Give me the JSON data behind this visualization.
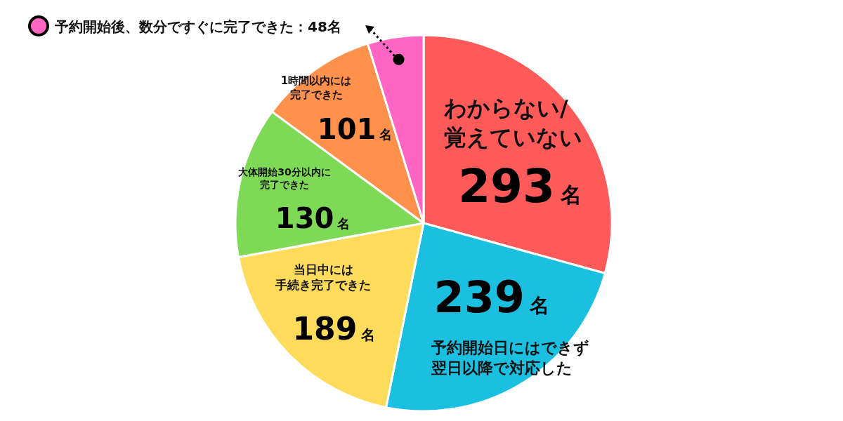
{
  "chart_data": {
    "type": "pie",
    "categories": [
      "わからない/覚えていない",
      "予約開始日にはできず翌日以降で対応した",
      "当日中には手続き完了できた",
      "大体開始30分以内に完了できた",
      "1時間以内には完了できた",
      "予約開始後、数分ですぐに完了できた"
    ],
    "values": [
      293,
      239,
      189,
      130,
      101,
      48
    ],
    "value_labels": [
      "293名",
      "239名",
      "189名",
      "130名",
      "101名",
      "：48名"
    ],
    "colors": [
      "#ff5a5a",
      "#1bbfe0",
      "#ffdb5c",
      "#7ed957",
      "#ff914d",
      "#ff66c4"
    ]
  }
}
